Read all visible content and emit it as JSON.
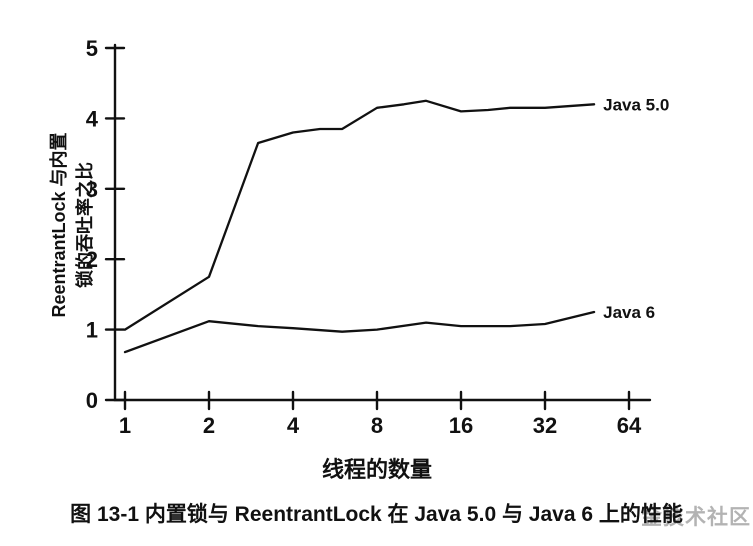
{
  "figure": {
    "caption": "图 13-1  内置锁与 ReentrantLock 在 Java 5.0 与 Java 6 上的性能",
    "watermark": "金技术社区"
  },
  "chart_data": {
    "type": "line",
    "title": "",
    "xlabel": "线程的数量",
    "ylabel": "ReentrantLock 与内置锁的吞吐率之比",
    "ylabel_lines": [
      "ReentrantLock 与内置",
      "锁的吞吐率之比"
    ],
    "x_scale": "log2",
    "xlim": [
      1,
      64
    ],
    "ylim": [
      0,
      5
    ],
    "x_ticks": [
      1,
      2,
      4,
      8,
      16,
      32,
      64
    ],
    "y_ticks": [
      0,
      1,
      2,
      3,
      4,
      5
    ],
    "grid": false,
    "legend": "inline-end-labels",
    "series": [
      {
        "name": "Java 5.0",
        "x": [
          1,
          2,
          3,
          4,
          5,
          6,
          8,
          10,
          12,
          16,
          20,
          24,
          32,
          48
        ],
        "y": [
          1.0,
          1.75,
          3.65,
          3.8,
          3.85,
          3.85,
          4.15,
          4.2,
          4.25,
          4.1,
          4.12,
          4.15,
          4.15,
          4.2
        ]
      },
      {
        "name": "Java 6",
        "x": [
          1,
          2,
          3,
          4,
          6,
          8,
          12,
          16,
          24,
          32,
          48
        ],
        "y": [
          0.68,
          1.12,
          1.05,
          1.02,
          0.97,
          1.0,
          1.1,
          1.05,
          1.05,
          1.08,
          1.25
        ]
      }
    ]
  }
}
